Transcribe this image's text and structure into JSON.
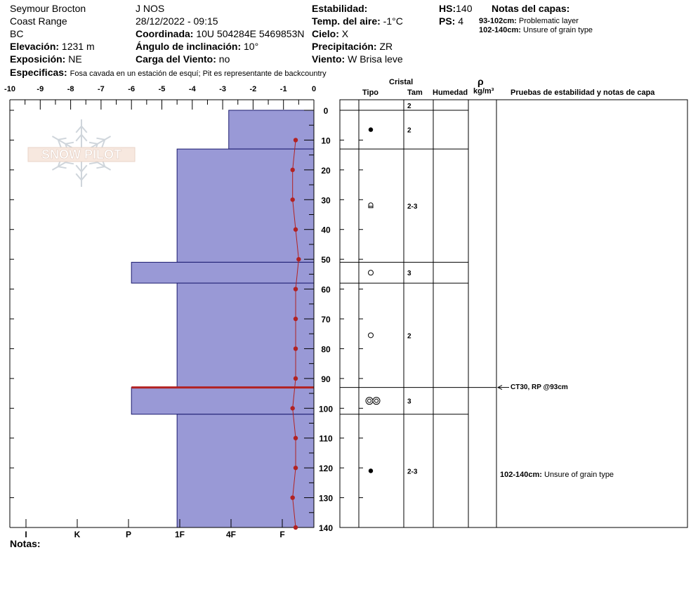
{
  "header": {
    "col1": [
      "Seymour Brocton",
      "Coast Range",
      "BC"
    ],
    "elevation_label": "Elevación:",
    "elevation": "1231 m",
    "aspect_label": "Exposición:",
    "aspect": "NE",
    "observer": "J NOS",
    "datetime": "28/12/2022 - 09:15",
    "coord_label": "Coordinada:",
    "coord": "10U 504284E 5469853N",
    "slope_label": "Ángulo de inclinación:",
    "slope": "10°",
    "wind_load_label": "Carga del Viento:",
    "wind_load": "no",
    "stability_label": "Estabilidad:",
    "stability": "",
    "air_temp_label": "Temp. del aire:",
    "air_temp": "-1°C",
    "sky_label": "Cielo:",
    "sky": "X",
    "precip_label": "Precipitación:",
    "precip": "ZR",
    "wind_label": "Viento:",
    "wind": "W Brisa leve",
    "hs_label": "HS:",
    "hs": "140",
    "ps_label": "PS:",
    "ps": "4",
    "layer_notes_label": "Notas del capas:",
    "layer_notes": [
      {
        "range": "93-102cm:",
        "text": "Problematic layer"
      },
      {
        "range": "102-140cm:",
        "text": "Unsure of grain type"
      }
    ],
    "specifics_label": "Especificas:",
    "specifics": "Fosa cavada en un estación de esquí; Pit es representante de backcountry"
  },
  "logo_text": "SNOW PILOT",
  "footer": {
    "notes_label": "Notas:"
  },
  "table": {
    "header_cristal": "Cristal",
    "header_tipo": "Tipo",
    "header_tam": "Tam",
    "header_humedad": "Humedad",
    "header_rho": "ρ",
    "header_density_unit": "kg/m³",
    "header_tests": "Pruebas de estabilidad y notas de capa",
    "stability_test": "CT30, RP @93cm",
    "layer_note": {
      "range": "102-140cm:",
      "text": "Unsure of grain type"
    }
  },
  "chart_data": {
    "type": "area",
    "title": "",
    "depth_axis": {
      "range": [
        0,
        140
      ],
      "ticks": [
        0,
        10,
        20,
        30,
        40,
        50,
        60,
        70,
        80,
        90,
        100,
        110,
        120,
        130,
        140
      ]
    },
    "temp_axis": {
      "range": [
        -10,
        0
      ],
      "ticks": [
        -10,
        -9,
        -8,
        -7,
        -6,
        -5,
        -4,
        -3,
        -2,
        -1,
        0
      ]
    },
    "hardness_axis": {
      "labels": [
        "I",
        "K",
        "P",
        "1F",
        "4F",
        "F"
      ]
    },
    "colors": {
      "hardness_fill": "#9999d6",
      "temp_line": "#b22222",
      "problem_line": "#b22222"
    },
    "hardness_layers": [
      {
        "top": 0,
        "bottom": 13,
        "hardness": "4F",
        "temp_axis_value": -2.8
      },
      {
        "top": 13,
        "bottom": 51,
        "hardness": "1F",
        "temp_axis_value": -4.5
      },
      {
        "top": 51,
        "bottom": 58,
        "hardness": "P",
        "temp_axis_value": -6.0
      },
      {
        "top": 58,
        "bottom": 93,
        "hardness": "1F",
        "temp_axis_value": -4.5
      },
      {
        "top": 93,
        "bottom": 102,
        "hardness": "P",
        "temp_axis_value": -6.0
      },
      {
        "top": 102,
        "bottom": 140,
        "hardness": "1F",
        "temp_axis_value": -4.5
      }
    ],
    "problematic_layer_depth": 93,
    "temperature_profile": [
      {
        "depth": 10,
        "temp": -0.6
      },
      {
        "depth": 20,
        "temp": -0.7
      },
      {
        "depth": 30,
        "temp": -0.7
      },
      {
        "depth": 40,
        "temp": -0.6
      },
      {
        "depth": 50,
        "temp": -0.5
      },
      {
        "depth": 60,
        "temp": -0.6
      },
      {
        "depth": 70,
        "temp": -0.6
      },
      {
        "depth": 80,
        "temp": -0.6
      },
      {
        "depth": 90,
        "temp": -0.6
      },
      {
        "depth": 100,
        "temp": -0.7
      },
      {
        "depth": 110,
        "temp": -0.6
      },
      {
        "depth": 120,
        "temp": -0.6
      },
      {
        "depth": 130,
        "temp": -0.7
      },
      {
        "depth": 140,
        "temp": -0.6
      }
    ],
    "layers_table": [
      {
        "top": 0,
        "bottom": 0,
        "grain_size": "2",
        "grain_type": ""
      },
      {
        "top": 0,
        "bottom": 13,
        "grain_size": "2",
        "grain_type": "rounds"
      },
      {
        "top": 13,
        "bottom": 51,
        "grain_size": "2-3",
        "grain_type": "faceted-rounds"
      },
      {
        "top": 51,
        "bottom": 58,
        "grain_size": "3",
        "grain_type": "melt-forms"
      },
      {
        "top": 58,
        "bottom": 93,
        "grain_size": "2",
        "grain_type": "melt-forms"
      },
      {
        "top": 93,
        "bottom": 102,
        "grain_size": "3",
        "grain_type": "melt-clusters"
      },
      {
        "top": 102,
        "bottom": 140,
        "grain_size": "2-3",
        "grain_type": "rounds"
      }
    ]
  }
}
